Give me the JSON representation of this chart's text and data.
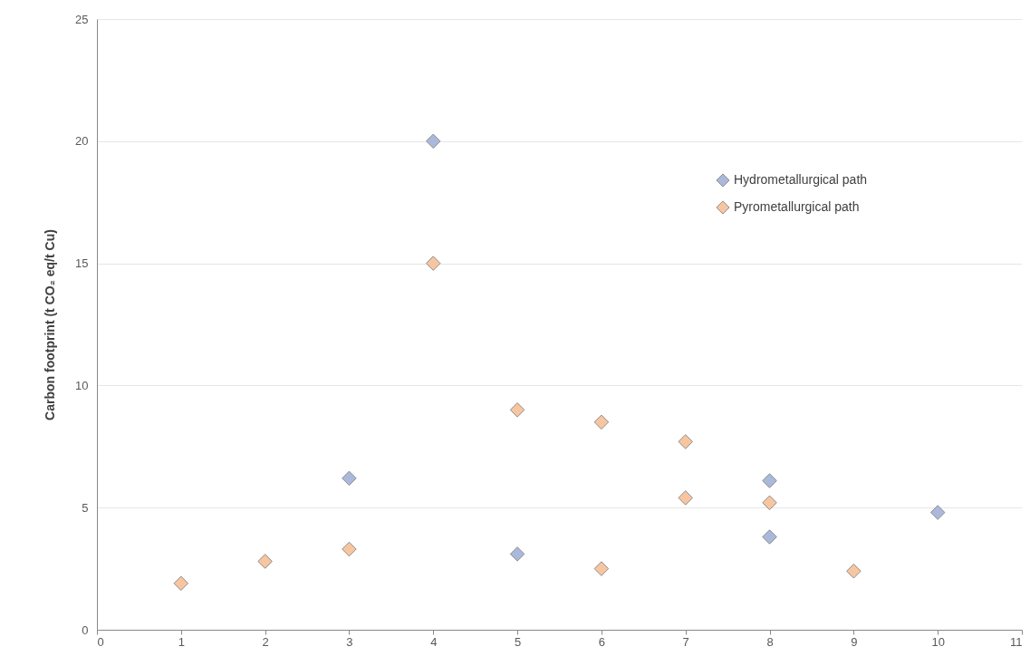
{
  "chart_data": {
    "type": "scatter",
    "ylabel": "Carbon footprint (t CO₂ eq/t Cu)",
    "xlim": [
      0,
      11
    ],
    "xticks": [
      0,
      1,
      2,
      3,
      4,
      5,
      6,
      7,
      8,
      9,
      10,
      11
    ],
    "ylim": [
      0,
      25
    ],
    "yticks": [
      0,
      5,
      10,
      15,
      20,
      25
    ],
    "grid": "y",
    "legend": "top right",
    "marker": "diamond",
    "series": [
      {
        "name": "Hydrometallurgical path",
        "color": "#aab9db",
        "x": [
          3,
          4,
          5,
          8,
          8,
          10
        ],
        "values": [
          6.2,
          20,
          3.1,
          6.1,
          3.8,
          4.8
        ]
      },
      {
        "name": "Pyrometallurgical path",
        "color": "#f7c6a1",
        "x": [
          1,
          2,
          3,
          4,
          5,
          6,
          6,
          7,
          7,
          8,
          9
        ],
        "values": [
          1.9,
          2.8,
          3.3,
          15,
          9.0,
          8.5,
          2.5,
          7.7,
          5.4,
          5.2,
          2.4
        ]
      }
    ]
  }
}
